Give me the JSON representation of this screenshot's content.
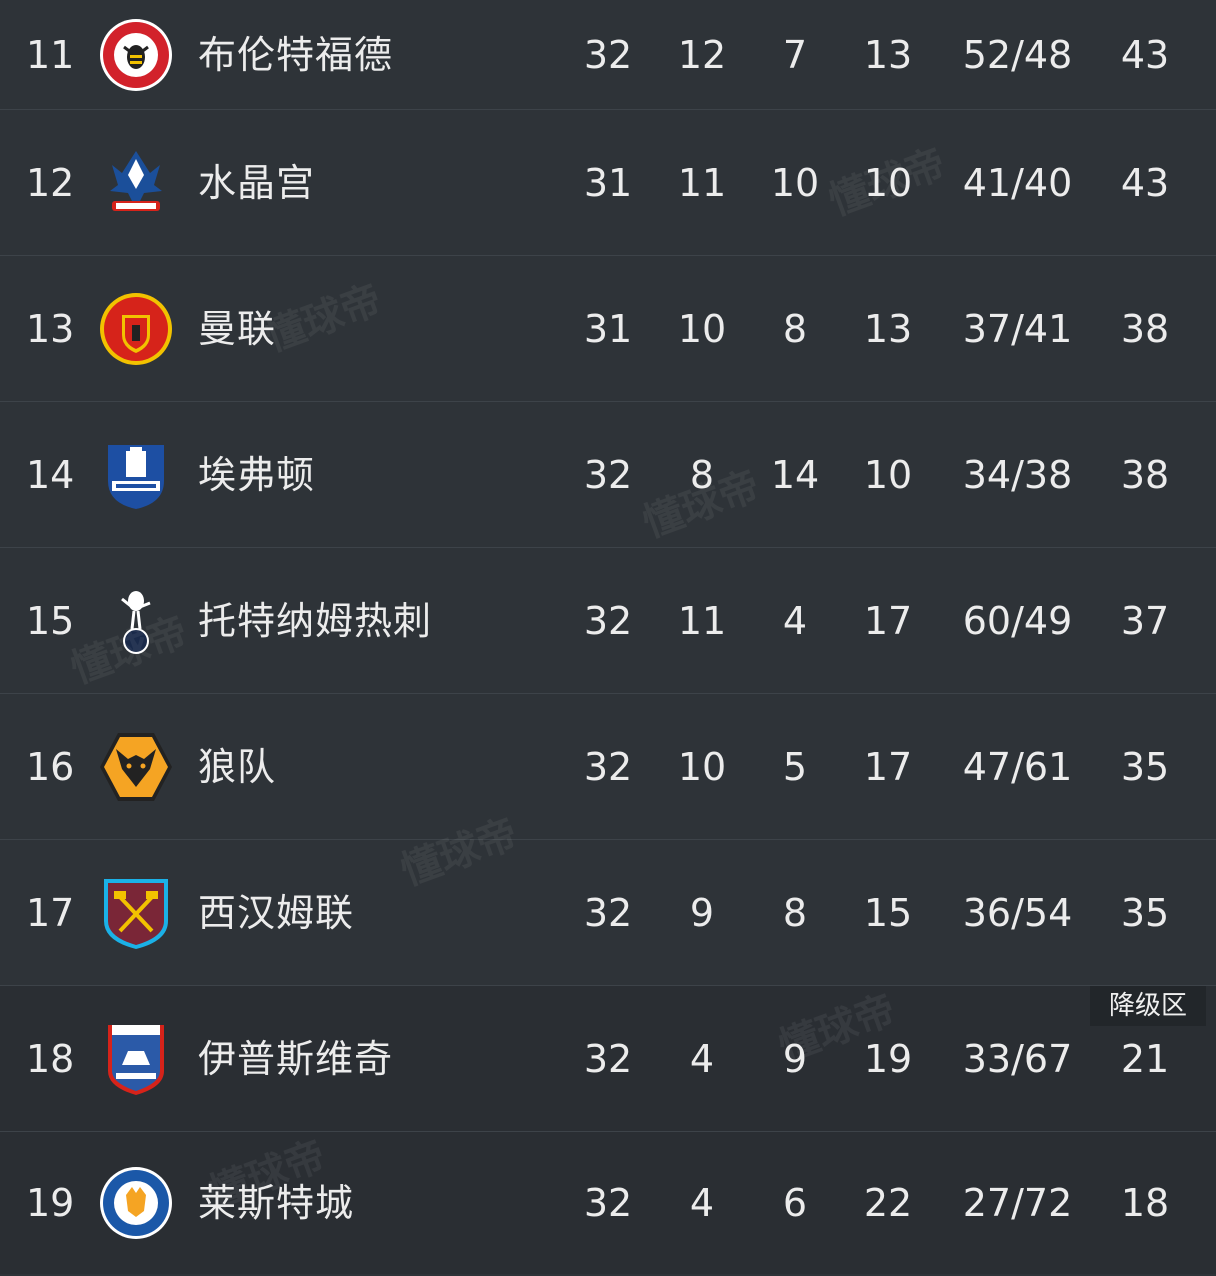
{
  "watermark": "懂球帝",
  "zone_label": "降级区",
  "rows": [
    {
      "rank": "11",
      "team": "布伦特福德",
      "played": "32",
      "won": "12",
      "drawn": "7",
      "lost": "13",
      "goals": "52/48",
      "points": "43",
      "crest_color": "#d2222b"
    },
    {
      "rank": "12",
      "team": "水晶宫",
      "played": "31",
      "won": "11",
      "drawn": "10",
      "lost": "10",
      "goals": "41/40",
      "points": "43",
      "crest_color": "#1b4f9a"
    },
    {
      "rank": "13",
      "team": "曼联",
      "played": "31",
      "won": "10",
      "drawn": "8",
      "lost": "13",
      "goals": "37/41",
      "points": "38",
      "crest_color": "#d6231a"
    },
    {
      "rank": "14",
      "team": "埃弗顿",
      "played": "32",
      "won": "8",
      "drawn": "14",
      "lost": "10",
      "goals": "34/38",
      "points": "38",
      "crest_color": "#1d4fa3"
    },
    {
      "rank": "15",
      "team": "托特纳姆热刺",
      "played": "32",
      "won": "11",
      "drawn": "4",
      "lost": "17",
      "goals": "60/49",
      "points": "37",
      "crest_color": "#ffffff"
    },
    {
      "rank": "16",
      "team": "狼队",
      "played": "32",
      "won": "10",
      "drawn": "5",
      "lost": "17",
      "goals": "47/61",
      "points": "35",
      "crest_color": "#f5a423"
    },
    {
      "rank": "17",
      "team": "西汉姆联",
      "played": "32",
      "won": "9",
      "drawn": "8",
      "lost": "15",
      "goals": "36/54",
      "points": "35",
      "crest_color": "#7a2637"
    },
    {
      "rank": "18",
      "team": "伊普斯维奇",
      "played": "32",
      "won": "4",
      "drawn": "9",
      "lost": "19",
      "goals": "33/67",
      "points": "21",
      "crest_color": "#2b5aa8"
    },
    {
      "rank": "19",
      "team": "莱斯特城",
      "played": "32",
      "won": "4",
      "drawn": "6",
      "lost": "22",
      "goals": "27/72",
      "points": "18",
      "crest_color": "#1b58a8"
    }
  ]
}
